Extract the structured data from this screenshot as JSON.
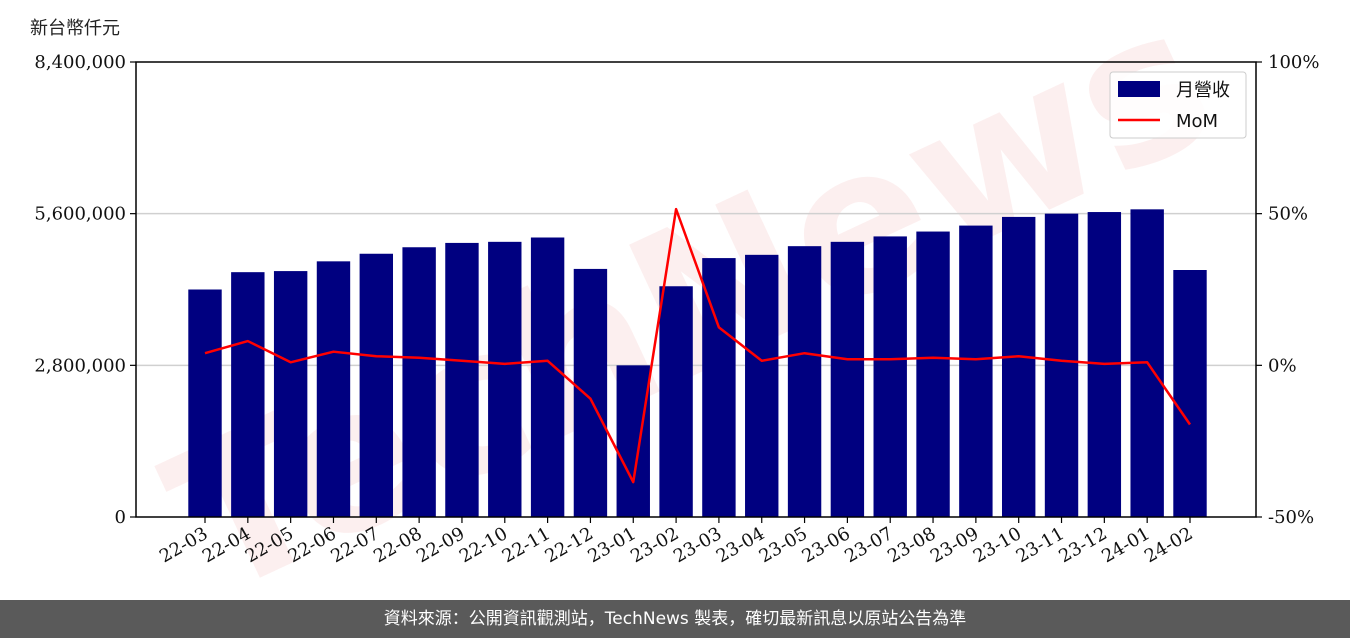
{
  "unit_label": "新台幣仟元",
  "watermark_text": "TechNews",
  "footer_text": "資料來源：公開資訊觀測站，TechNews 製表，確切最新訊息以原站公告為準",
  "colors": {
    "bar": "#000080",
    "line": "#ff0000",
    "grid": "#d0d0d0",
    "axis": "#000000",
    "footer_bg": "#5a5a5a"
  },
  "chart_data": {
    "type": "bar",
    "categories": [
      "22-03",
      "22-04",
      "22-05",
      "22-06",
      "22-07",
      "22-08",
      "22-09",
      "22-10",
      "22-11",
      "22-12",
      "23-01",
      "23-02",
      "23-03",
      "23-04",
      "23-05",
      "23-06",
      "23-07",
      "23-08",
      "23-09",
      "23-10",
      "23-11",
      "23-12",
      "24-01",
      "24-02"
    ],
    "series": [
      {
        "name": "月營收",
        "type": "bar",
        "axis": "left",
        "values": [
          4200000,
          4520000,
          4540000,
          4720000,
          4860000,
          4980000,
          5060000,
          5080000,
          5160000,
          4580000,
          2800000,
          4260000,
          4780000,
          4840000,
          5000000,
          5080000,
          5180000,
          5270000,
          5380000,
          5540000,
          5600000,
          5630000,
          5680000,
          4560000
        ]
      },
      {
        "name": "MoM",
        "type": "line",
        "axis": "right",
        "values": [
          4,
          8,
          1,
          4.5,
          3,
          2.5,
          1.5,
          0.5,
          1.5,
          -11,
          -38.5,
          51.5,
          12.5,
          1.5,
          4,
          2,
          2,
          2.5,
          2,
          3,
          1.5,
          0.5,
          1,
          -19.5
        ]
      }
    ],
    "y_left": {
      "lim": [
        0,
        8400000
      ],
      "ticks": [
        0,
        2800000,
        5600000,
        8400000
      ],
      "tick_labels": [
        "0",
        "2,800,000",
        "5,600,000",
        "8,400,000"
      ]
    },
    "y_right": {
      "lim": [
        -50,
        100
      ],
      "ticks": [
        -50,
        0,
        50,
        100
      ],
      "tick_labels": [
        "-50%",
        "0%",
        "50%",
        "100%"
      ]
    },
    "grid": "horizontal",
    "legend": {
      "placement": "top-right",
      "entries": [
        {
          "label": "月營收",
          "kind": "bar"
        },
        {
          "label": "MoM",
          "kind": "line"
        }
      ]
    }
  }
}
